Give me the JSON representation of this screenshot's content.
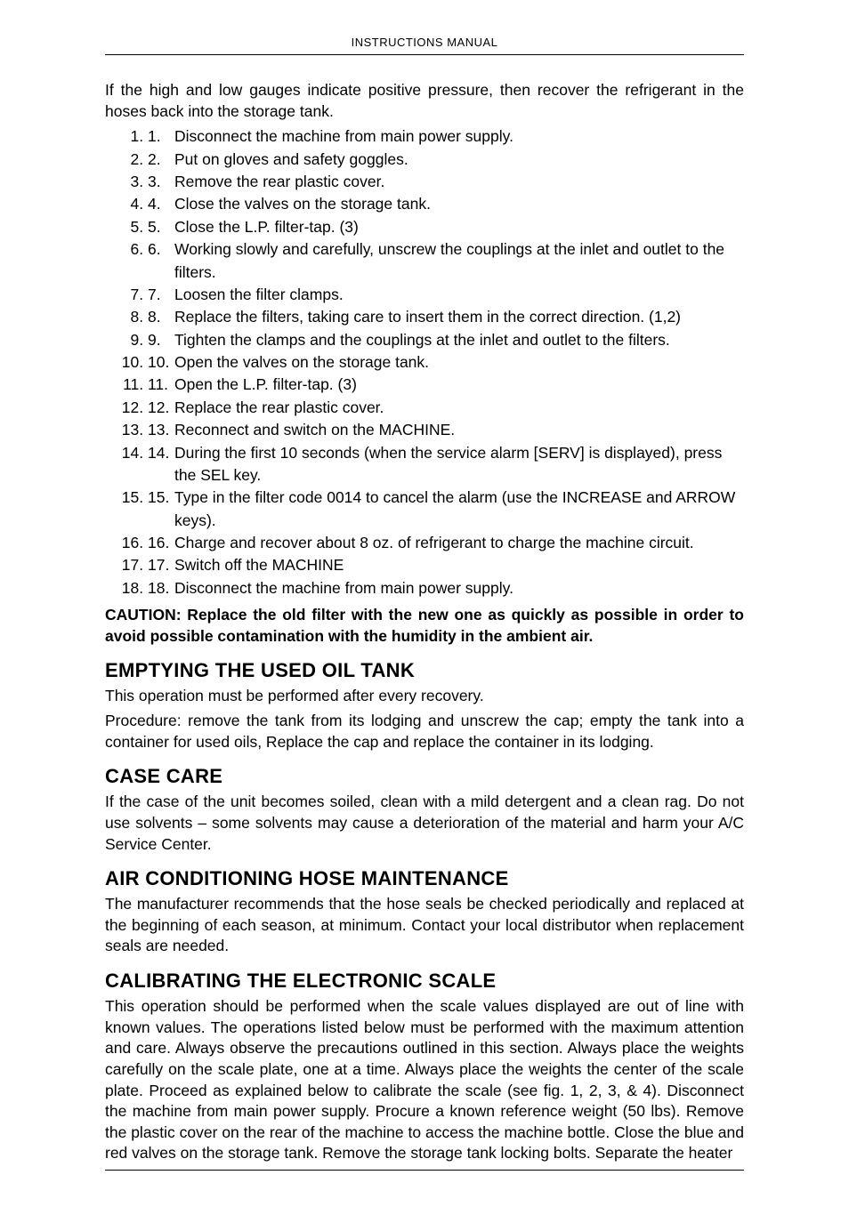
{
  "header": {
    "title": "INSTRUCTIONS MANUAL"
  },
  "intro": "If the high and low gauges indicate positive pressure, then recover the refrigerant in the hoses back into the storage tank.",
  "steps": [
    "Disconnect the machine from main power supply.",
    "Put on gloves and safety goggles.",
    "Remove the rear plastic cover.",
    "Close the valves on the storage tank.",
    "Close the L.P. filter-tap. (3)",
    "Working slowly and carefully, unscrew the couplings at the inlet and outlet to the filters.",
    "Loosen the filter clamps.",
    "Replace the filters, taking care to insert them in the correct direction. (1,2)",
    "Tighten the clamps and the couplings at the inlet and outlet to the filters.",
    "Open the valves on the storage tank.",
    "Open the L.P. filter-tap. (3)",
    "Replace the rear plastic cover.",
    "Reconnect and switch on the MACHINE.",
    "During the first 10 seconds (when the service alarm [SERV] is displayed), press the SEL key.",
    "Type in the filter code 0014 to cancel the alarm (use the INCREASE and ARROW keys).",
    "Charge and recover about 8 oz. of refrigerant to charge the machine circuit.",
    "Switch off the MACHINE",
    "Disconnect the machine from main power supply."
  ],
  "caution": "CAUTION: Replace the old filter with the new one as quickly as possible in order to avoid possible contamination with the humidity in the ambient air.",
  "sections": [
    {
      "heading": "EMPTYING THE USED OIL TANK",
      "paragraphs": [
        "This operation must be performed after every recovery.",
        "Procedure: remove the tank from its lodging and unscrew the cap; empty the tank into a container for used oils, Replace the cap and replace the container in its lodging."
      ]
    },
    {
      "heading": "CASE CARE",
      "paragraphs": [
        "If the case of the unit becomes soiled, clean with a mild detergent and a clean rag. Do not use solvents – some solvents may cause a deterioration of the material and harm your A/C Service Center."
      ]
    },
    {
      "heading": "AIR CONDITIONING HOSE MAINTENANCE",
      "paragraphs": [
        "The manufacturer recommends that the hose seals be checked periodically and replaced at the beginning of each season, at minimum. Contact your local distributor when replacement seals are needed."
      ]
    },
    {
      "heading": "CALIBRATING THE ELECTRONIC SCALE",
      "paragraphs": [
        "This operation should be performed when the scale values displayed are out of line with known values. The operations listed below must be performed with the maximum attention and care. Always observe the precautions outlined in this section. Always place the weights carefully on the scale plate, one at a time. Always place the weights the center of the scale plate. Proceed as explained below to calibrate the scale (see fig. 1, 2, 3, & 4). Disconnect the machine from main power supply. Procure a known reference weight (50 lbs). Remove the plastic cover on the rear of the machine to access the machine bottle. Close the blue and red valves on the storage tank. Remove the storage tank locking bolts. Separate the heater"
      ]
    }
  ]
}
